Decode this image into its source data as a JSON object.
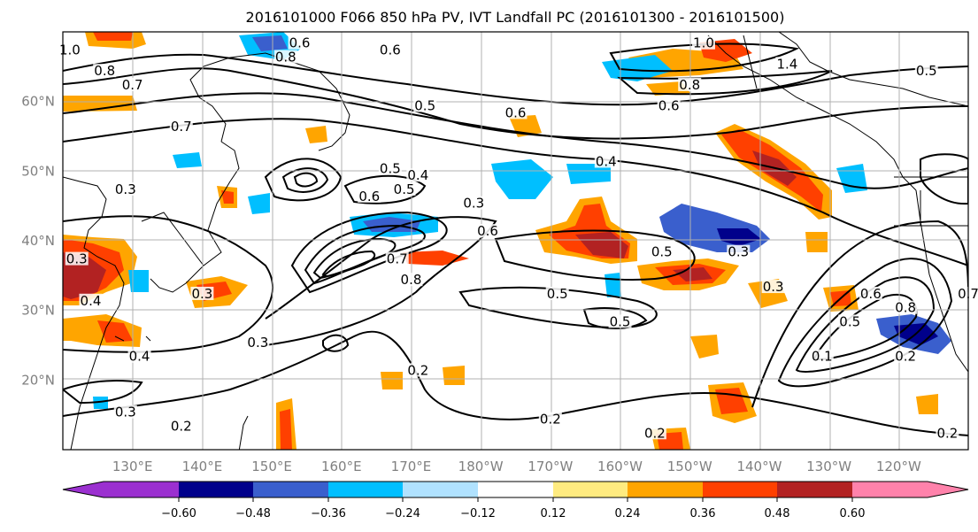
{
  "title": "2016101000 F066 850 hPa PV, IVT Landfall PC (2016101300 - 2016101500)",
  "map": {
    "lon_ticks": [
      "130°E",
      "140°E",
      "150°E",
      "160°E",
      "170°E",
      "180°W",
      "170°W",
      "160°W",
      "150°W",
      "140°W",
      "130°W",
      "120°W"
    ],
    "lat_ticks": [
      "20°N",
      "30°N",
      "40°N",
      "50°N",
      "60°N"
    ],
    "colors": {
      "neg_060": "#9b30d0",
      "neg_048": "#00008b",
      "neg_036": "#3a5fcd",
      "neg_024": "#00bfff",
      "neg_012": "#b0e2ff",
      "pos_012": "#ffeb80",
      "pos_024": "#ffa500",
      "pos_036": "#ff4000",
      "pos_048": "#b22222",
      "pos_060": "#ff82ab"
    },
    "contour_labels": [
      {
        "text": "0.6",
        "lon": 154,
        "lat": 68
      },
      {
        "text": "0.6",
        "lon": 167,
        "lat": 67
      },
      {
        "text": "0.8",
        "lon": 152,
        "lat": 66
      },
      {
        "text": "0.8",
        "lon": 126,
        "lat": 64
      },
      {
        "text": "1.0",
        "lon": 121,
        "lat": 67
      },
      {
        "text": "0.7",
        "lon": 130,
        "lat": 62
      },
      {
        "text": "0.7",
        "lon": 137,
        "lat": 56
      },
      {
        "text": "0.5",
        "lon": 172,
        "lat": 59
      },
      {
        "text": "0.6",
        "lon": 185,
        "lat": 58
      },
      {
        "text": "0.4",
        "lon": 198,
        "lat": 51
      },
      {
        "text": "0.5",
        "lon": 167,
        "lat": 50
      },
      {
        "text": "0.4",
        "lon": 171,
        "lat": 49
      },
      {
        "text": "0.6",
        "lon": 164,
        "lat": 46
      },
      {
        "text": "0.5",
        "lon": 169,
        "lat": 47
      },
      {
        "text": "0.3",
        "lon": 179,
        "lat": 45
      },
      {
        "text": "0.3",
        "lon": 129,
        "lat": 47
      },
      {
        "text": "0.6",
        "lon": 181,
        "lat": 41
      },
      {
        "text": "0.7",
        "lon": 168,
        "lat": 37
      },
      {
        "text": "0.8",
        "lon": 170,
        "lat": 34
      },
      {
        "text": "0.5",
        "lon": 206,
        "lat": 38
      },
      {
        "text": "0.5",
        "lon": 191,
        "lat": 32
      },
      {
        "text": "0.5",
        "lon": 200,
        "lat": 28
      },
      {
        "text": "0.3",
        "lon": 217,
        "lat": 38
      },
      {
        "text": "0.3",
        "lon": 140,
        "lat": 32
      },
      {
        "text": "0.3",
        "lon": 122,
        "lat": 37
      },
      {
        "text": "0.4",
        "lon": 124,
        "lat": 31
      },
      {
        "text": "0.3",
        "lon": 148,
        "lat": 25
      },
      {
        "text": "0.2",
        "lon": 171,
        "lat": 21
      },
      {
        "text": "0.3",
        "lon": 129,
        "lat": 15
      },
      {
        "text": "0.2",
        "lon": 137,
        "lat": 13
      },
      {
        "text": "0.2",
        "lon": 190,
        "lat": 14
      },
      {
        "text": "0.2",
        "lon": 205,
        "lat": 12
      },
      {
        "text": "0.3",
        "lon": 222,
        "lat": 33
      },
      {
        "text": "0.5",
        "lon": 233,
        "lat": 28
      },
      {
        "text": "0.6",
        "lon": 236,
        "lat": 32
      },
      {
        "text": "0.8",
        "lon": 241,
        "lat": 30
      },
      {
        "text": "0.2",
        "lon": 241,
        "lat": 23
      },
      {
        "text": "0.1",
        "lon": 229,
        "lat": 23
      },
      {
        "text": "0.2",
        "lon": 247,
        "lat": 12
      },
      {
        "text": "1.0",
        "lon": 212,
        "lat": 68
      },
      {
        "text": "0.8",
        "lon": 210,
        "lat": 62
      },
      {
        "text": "0.6",
        "lon": 207,
        "lat": 59
      },
      {
        "text": "1.4",
        "lon": 224,
        "lat": 65
      },
      {
        "text": "0.5",
        "lon": 244,
        "lat": 64
      },
      {
        "text": "0.7",
        "lon": 250,
        "lat": 32
      },
      {
        "text": "0.4",
        "lon": 131,
        "lat": 23
      }
    ]
  },
  "colorbar": {
    "tick_labels": [
      "−0.60",
      "−0.48",
      "−0.36",
      "−0.24",
      "−0.12",
      "0.12",
      "0.24",
      "0.36",
      "0.48",
      "0.60"
    ]
  }
}
